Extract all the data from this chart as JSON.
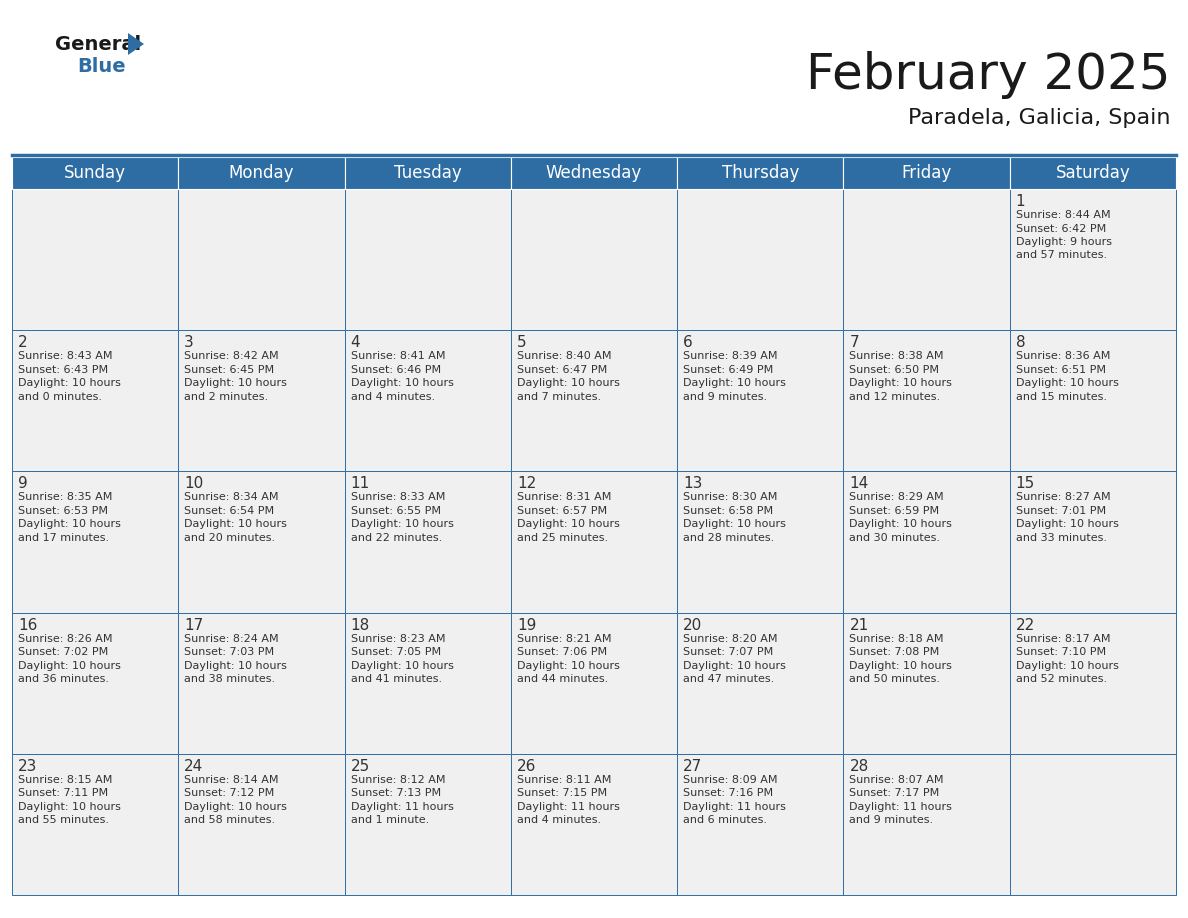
{
  "title": "February 2025",
  "subtitle": "Paradela, Galicia, Spain",
  "header_color": "#2E6DA4",
  "header_text_color": "#FFFFFF",
  "cell_bg_color": "#F0F0F0",
  "border_color": "#2E6DA4",
  "text_color": "#333333",
  "day_headers": [
    "Sunday",
    "Monday",
    "Tuesday",
    "Wednesday",
    "Thursday",
    "Friday",
    "Saturday"
  ],
  "title_fontsize": 36,
  "subtitle_fontsize": 16,
  "header_fontsize": 12,
  "day_num_fontsize": 11,
  "cell_text_fontsize": 8,
  "logo_general_fontsize": 14,
  "logo_blue_fontsize": 14,
  "calendar": [
    [
      null,
      null,
      null,
      null,
      null,
      null,
      {
        "day": 1,
        "sunrise": "8:44 AM",
        "sunset": "6:42 PM",
        "daylight_hours": "9 hours",
        "daylight_mins": "and 57 minutes."
      }
    ],
    [
      {
        "day": 2,
        "sunrise": "8:43 AM",
        "sunset": "6:43 PM",
        "daylight_hours": "10 hours",
        "daylight_mins": "and 0 minutes."
      },
      {
        "day": 3,
        "sunrise": "8:42 AM",
        "sunset": "6:45 PM",
        "daylight_hours": "10 hours",
        "daylight_mins": "and 2 minutes."
      },
      {
        "day": 4,
        "sunrise": "8:41 AM",
        "sunset": "6:46 PM",
        "daylight_hours": "10 hours",
        "daylight_mins": "and 4 minutes."
      },
      {
        "day": 5,
        "sunrise": "8:40 AM",
        "sunset": "6:47 PM",
        "daylight_hours": "10 hours",
        "daylight_mins": "and 7 minutes."
      },
      {
        "day": 6,
        "sunrise": "8:39 AM",
        "sunset": "6:49 PM",
        "daylight_hours": "10 hours",
        "daylight_mins": "and 9 minutes."
      },
      {
        "day": 7,
        "sunrise": "8:38 AM",
        "sunset": "6:50 PM",
        "daylight_hours": "10 hours",
        "daylight_mins": "and 12 minutes."
      },
      {
        "day": 8,
        "sunrise": "8:36 AM",
        "sunset": "6:51 PM",
        "daylight_hours": "10 hours",
        "daylight_mins": "and 15 minutes."
      }
    ],
    [
      {
        "day": 9,
        "sunrise": "8:35 AM",
        "sunset": "6:53 PM",
        "daylight_hours": "10 hours",
        "daylight_mins": "and 17 minutes."
      },
      {
        "day": 10,
        "sunrise": "8:34 AM",
        "sunset": "6:54 PM",
        "daylight_hours": "10 hours",
        "daylight_mins": "and 20 minutes."
      },
      {
        "day": 11,
        "sunrise": "8:33 AM",
        "sunset": "6:55 PM",
        "daylight_hours": "10 hours",
        "daylight_mins": "and 22 minutes."
      },
      {
        "day": 12,
        "sunrise": "8:31 AM",
        "sunset": "6:57 PM",
        "daylight_hours": "10 hours",
        "daylight_mins": "and 25 minutes."
      },
      {
        "day": 13,
        "sunrise": "8:30 AM",
        "sunset": "6:58 PM",
        "daylight_hours": "10 hours",
        "daylight_mins": "and 28 minutes."
      },
      {
        "day": 14,
        "sunrise": "8:29 AM",
        "sunset": "6:59 PM",
        "daylight_hours": "10 hours",
        "daylight_mins": "and 30 minutes."
      },
      {
        "day": 15,
        "sunrise": "8:27 AM",
        "sunset": "7:01 PM",
        "daylight_hours": "10 hours",
        "daylight_mins": "and 33 minutes."
      }
    ],
    [
      {
        "day": 16,
        "sunrise": "8:26 AM",
        "sunset": "7:02 PM",
        "daylight_hours": "10 hours",
        "daylight_mins": "and 36 minutes."
      },
      {
        "day": 17,
        "sunrise": "8:24 AM",
        "sunset": "7:03 PM",
        "daylight_hours": "10 hours",
        "daylight_mins": "and 38 minutes."
      },
      {
        "day": 18,
        "sunrise": "8:23 AM",
        "sunset": "7:05 PM",
        "daylight_hours": "10 hours",
        "daylight_mins": "and 41 minutes."
      },
      {
        "day": 19,
        "sunrise": "8:21 AM",
        "sunset": "7:06 PM",
        "daylight_hours": "10 hours",
        "daylight_mins": "and 44 minutes."
      },
      {
        "day": 20,
        "sunrise": "8:20 AM",
        "sunset": "7:07 PM",
        "daylight_hours": "10 hours",
        "daylight_mins": "and 47 minutes."
      },
      {
        "day": 21,
        "sunrise": "8:18 AM",
        "sunset": "7:08 PM",
        "daylight_hours": "10 hours",
        "daylight_mins": "and 50 minutes."
      },
      {
        "day": 22,
        "sunrise": "8:17 AM",
        "sunset": "7:10 PM",
        "daylight_hours": "10 hours",
        "daylight_mins": "and 52 minutes."
      }
    ],
    [
      {
        "day": 23,
        "sunrise": "8:15 AM",
        "sunset": "7:11 PM",
        "daylight_hours": "10 hours",
        "daylight_mins": "and 55 minutes."
      },
      {
        "day": 24,
        "sunrise": "8:14 AM",
        "sunset": "7:12 PM",
        "daylight_hours": "10 hours",
        "daylight_mins": "and 58 minutes."
      },
      {
        "day": 25,
        "sunrise": "8:12 AM",
        "sunset": "7:13 PM",
        "daylight_hours": "11 hours",
        "daylight_mins": "and 1 minute."
      },
      {
        "day": 26,
        "sunrise": "8:11 AM",
        "sunset": "7:15 PM",
        "daylight_hours": "11 hours",
        "daylight_mins": "and 4 minutes."
      },
      {
        "day": 27,
        "sunrise": "8:09 AM",
        "sunset": "7:16 PM",
        "daylight_hours": "11 hours",
        "daylight_mins": "and 6 minutes."
      },
      {
        "day": 28,
        "sunrise": "8:07 AM",
        "sunset": "7:17 PM",
        "daylight_hours": "11 hours",
        "daylight_mins": "and 9 minutes."
      },
      null
    ]
  ]
}
